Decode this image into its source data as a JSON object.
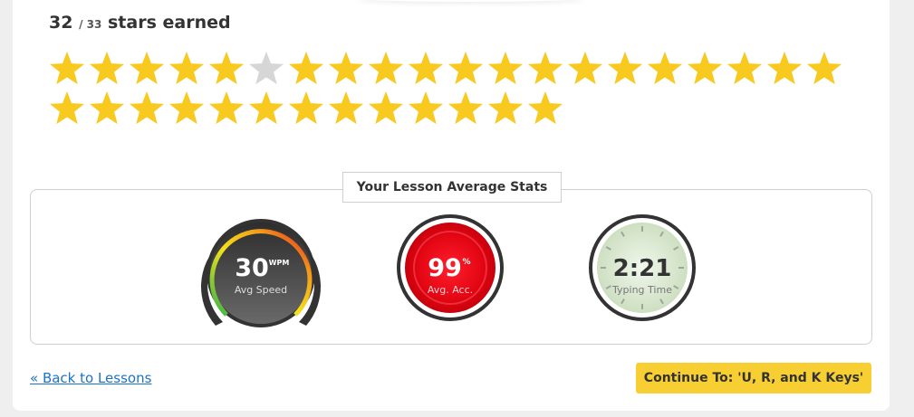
{
  "stars": {
    "earned": "32",
    "separator": "/",
    "total": "33",
    "label": "stars earned",
    "earned_count": 32,
    "total_count": 33,
    "empty_index": 5,
    "filled_color": "#f8c91e",
    "empty_color": "#d6d6d6"
  },
  "stats": {
    "title": "Your Lesson Average Stats",
    "speed": {
      "value": "30",
      "unit": "WPM",
      "label": "Avg Speed"
    },
    "accuracy": {
      "value": "99",
      "unit": "%",
      "label": "Avg. Acc."
    },
    "time": {
      "value": "2:21",
      "label": "Typing Time"
    }
  },
  "nav": {
    "back_label": "« Back to Lessons",
    "continue_label": "Continue To: 'U, R, and K Keys'"
  },
  "colors": {
    "accent_link": "#1a73c8",
    "button": "#f8cf33",
    "accuracy_red": "#e30613",
    "time_green": "#d9e8cf"
  }
}
